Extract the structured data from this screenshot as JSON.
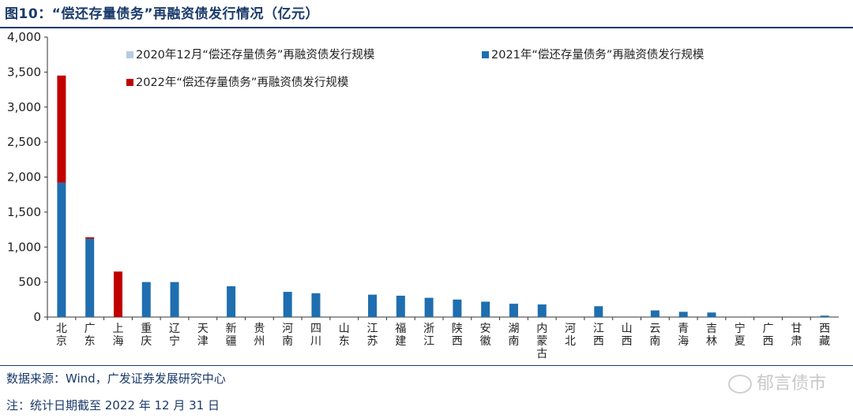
{
  "figure": {
    "title": "图10：“偿还存量债务”再融资债发行情况（亿元）"
  },
  "footer": {
    "source": "数据来源：Wind，广发证券发展研究中心",
    "note": "注：统计日期截至 2022 年 12 月 31 日",
    "watermark": "郁言债市"
  },
  "colors": {
    "s2020": "#b4cbe3",
    "s2021": "#1f6eb0",
    "s2022": "#c00000",
    "axis": "#333333"
  },
  "chart_data": {
    "type": "bar",
    "stacked": true,
    "title": "",
    "xlabel": "",
    "ylabel": "",
    "ylim": [
      0,
      4000
    ],
    "yticks": [
      "0",
      "500",
      "1,000",
      "1,500",
      "2,000",
      "2,500",
      "3,000",
      "3,500",
      "4,000"
    ],
    "grid": false,
    "legend": "top",
    "categories": [
      "北京",
      "广东",
      "上海",
      "重庆",
      "辽宁",
      "天津",
      "新疆",
      "贵州",
      "河南",
      "四川",
      "山东",
      "江苏",
      "福建",
      "浙江",
      "陕西",
      "安徽",
      "湖南",
      "内蒙古",
      "河北",
      "江西",
      "山西",
      "云南",
      "青海",
      "吉林",
      "宁夏",
      "广西",
      "甘肃",
      "西藏"
    ],
    "series": [
      {
        "name": "2020年12月“偿还存量债务”再融资债发行规模",
        "values": [
          0,
          0,
          0,
          0,
          0,
          0,
          0,
          0,
          0,
          0,
          0,
          0,
          0,
          0,
          0,
          0,
          0,
          0,
          0,
          0,
          0,
          0,
          0,
          0,
          0,
          0,
          0,
          0
        ]
      },
      {
        "name": "2021年“偿还存量债务”再融资债发行规模",
        "values": [
          1920,
          1120,
          0,
          500,
          500,
          0,
          440,
          0,
          360,
          340,
          0,
          320,
          305,
          275,
          250,
          220,
          190,
          180,
          0,
          155,
          0,
          95,
          75,
          65,
          0,
          0,
          0,
          20
        ]
      },
      {
        "name": "2022年“偿还存量债务”再融资债发行规模",
        "values": [
          1530,
          20,
          650,
          0,
          0,
          0,
          0,
          0,
          0,
          0,
          0,
          0,
          0,
          0,
          0,
          0,
          0,
          0,
          0,
          0,
          0,
          0,
          0,
          0,
          0,
          0,
          0,
          0
        ]
      }
    ]
  }
}
